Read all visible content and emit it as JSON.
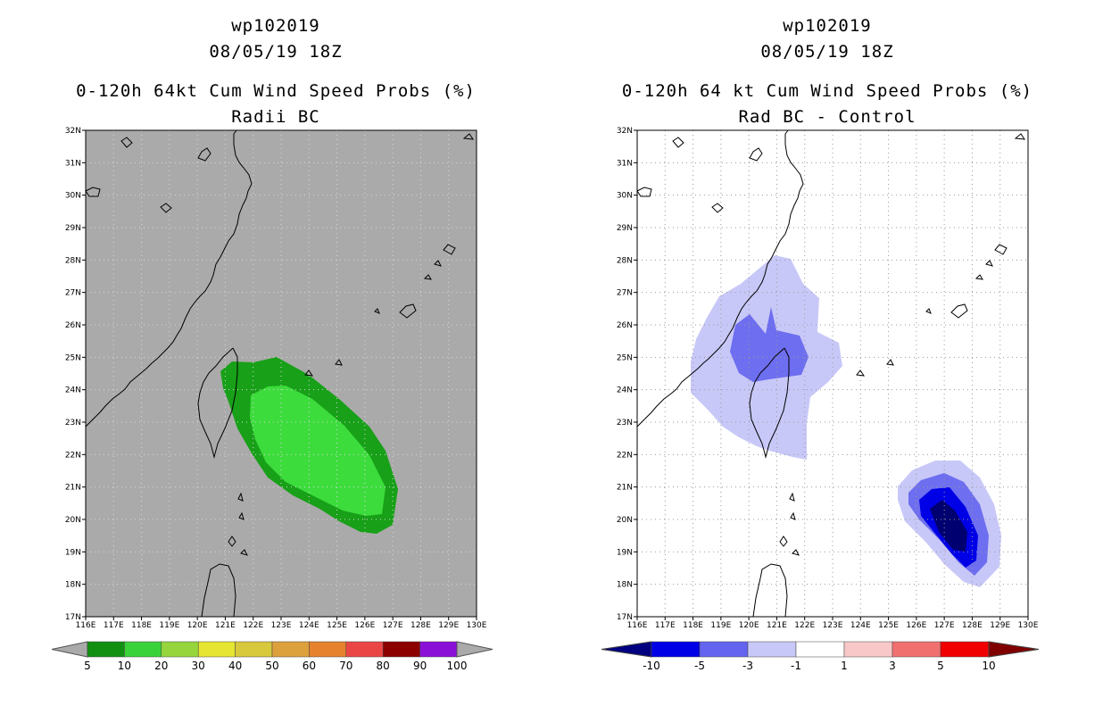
{
  "left": {
    "header": {
      "storm": "wp102019",
      "datetime": "08/05/19 18Z",
      "product": "0-120h 64kt Cum Wind Speed Probs (%)",
      "subtitle": "Radii BC"
    },
    "lat_labels": [
      "32N",
      "31N",
      "30N",
      "29N",
      "28N",
      "27N",
      "26N",
      "25N",
      "24N",
      "23N",
      "22N",
      "21N",
      "20N",
      "19N",
      "18N",
      "17N"
    ],
    "lon_labels": [
      "116E",
      "117E",
      "118E",
      "119E",
      "120E",
      "121E",
      "122E",
      "123E",
      "124E",
      "125E",
      "126E",
      "127E",
      "128E",
      "129E",
      "130E"
    ],
    "colorbar": {
      "labels": [
        "5",
        "10",
        "20",
        "30",
        "40",
        "50",
        "60",
        "70",
        "80",
        "90",
        "100"
      ],
      "colors": [
        "#129012",
        "#3ad23a",
        "#96d63c",
        "#e6e632",
        "#d8c83c",
        "#dca03c",
        "#e6822e",
        "#ea4646",
        "#8c0000",
        "#8a10d8"
      ]
    },
    "fill_colors": {
      "outer": "#18a018",
      "inner": "#3cdc3c",
      "background": "#aaaaaa"
    }
  },
  "right": {
    "header": {
      "storm": "wp102019",
      "datetime": "08/05/19 18Z",
      "product": "0-120h 64 kt Cum Wind Speed Probs (%)",
      "subtitle": "Rad BC - Control"
    },
    "lat_labels": [
      "32N",
      "31N",
      "30N",
      "29N",
      "28N",
      "27N",
      "26N",
      "25N",
      "24N",
      "23N",
      "22N",
      "21N",
      "20N",
      "19N",
      "18N",
      "17N"
    ],
    "lon_labels": [
      "116E",
      "117E",
      "118E",
      "119E",
      "120E",
      "121E",
      "122E",
      "123E",
      "124E",
      "125E",
      "126E",
      "127E",
      "128E",
      "129E",
      "130E"
    ],
    "colorbar": {
      "labels": [
        "-10",
        "-5",
        "-3",
        "-1",
        "1",
        "3",
        "5",
        "10"
      ],
      "colors": [
        "#0000e6",
        "#6464f0",
        "#c8c8f8",
        "#ffffff",
        "#f8c8c8",
        "#f07070",
        "#f00000"
      ],
      "end_colors": [
        "#000080",
        "#800000"
      ]
    },
    "fill_colors": {
      "light": "#c8c8f8",
      "medium": "#6e6ef0",
      "strong": "#0000e6",
      "darkest": "#000070"
    }
  }
}
